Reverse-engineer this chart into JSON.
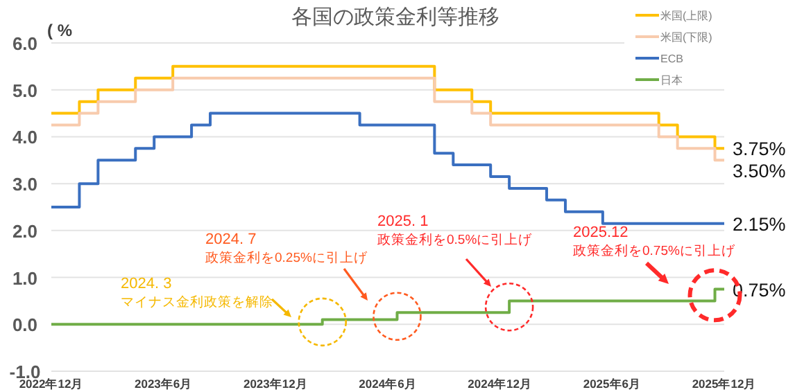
{
  "chart_data": {
    "type": "step",
    "title": "各国の政策金利等推移",
    "ylabel": "( %",
    "categories": [
      "2022年12月",
      null,
      null,
      null,
      null,
      null,
      "2023年6月",
      null,
      null,
      null,
      null,
      null,
      "2023年12月",
      null,
      null,
      null,
      null,
      null,
      "2024年6月",
      null,
      null,
      null,
      null,
      null,
      "2024年12月",
      null,
      null,
      null,
      null,
      null,
      "2025年6月",
      null,
      null,
      null,
      null,
      null,
      "2025年12月"
    ],
    "ylim": [
      -1,
      6
    ],
    "yticks": [
      {
        "value": -1,
        "label": "-1.0"
      },
      {
        "value": 0,
        "label": "0.0"
      },
      {
        "value": 1,
        "label": "1.0"
      },
      {
        "value": 2,
        "label": "2.0"
      },
      {
        "value": 3,
        "label": "3.0"
      },
      {
        "value": 4,
        "label": "4.0"
      },
      {
        "value": 5,
        "label": "5.0"
      },
      {
        "value": 6,
        "label": "6.0"
      }
    ],
    "grid": "y",
    "legend": "top right",
    "line_style": "solid",
    "marker": "none",
    "series": [
      {
        "name": "米国(上限)",
        "color": "#ffc000",
        "values": [
          4.5,
          4.5,
          4.75,
          5.0,
          5.0,
          5.25,
          5.25,
          5.5,
          5.5,
          5.5,
          5.5,
          5.5,
          5.5,
          5.5,
          5.5,
          5.5,
          5.5,
          5.5,
          5.5,
          5.5,
          5.5,
          5.0,
          5.0,
          4.75,
          4.5,
          4.5,
          4.5,
          4.5,
          4.5,
          4.5,
          4.5,
          4.5,
          4.5,
          4.25,
          4.0,
          4.0,
          3.75
        ],
        "value_labels": [
          null,
          null,
          null,
          null,
          null,
          null,
          null,
          null,
          null,
          null,
          null,
          null,
          null,
          null,
          null,
          null,
          null,
          null,
          null,
          null,
          null,
          null,
          null,
          null,
          null,
          null,
          null,
          null,
          null,
          null,
          null,
          null,
          null,
          null,
          null,
          null,
          "3.75%"
        ]
      },
      {
        "name": "米国(下限)",
        "color": "#f8cbad",
        "values": [
          4.25,
          4.25,
          4.5,
          4.75,
          4.75,
          5.0,
          5.0,
          5.25,
          5.25,
          5.25,
          5.25,
          5.25,
          5.25,
          5.25,
          5.25,
          5.25,
          5.25,
          5.25,
          5.25,
          5.25,
          5.25,
          4.75,
          4.75,
          4.5,
          4.25,
          4.25,
          4.25,
          4.25,
          4.25,
          4.25,
          4.25,
          4.25,
          4.25,
          4.0,
          3.75,
          3.75,
          3.5
        ],
        "value_labels": [
          null,
          null,
          null,
          null,
          null,
          null,
          null,
          null,
          null,
          null,
          null,
          null,
          null,
          null,
          null,
          null,
          null,
          null,
          null,
          null,
          null,
          null,
          null,
          null,
          null,
          null,
          null,
          null,
          null,
          null,
          null,
          null,
          null,
          null,
          null,
          null,
          "3.50%"
        ]
      },
      {
        "name": "ECB",
        "color": "#3a6fc0",
        "values": [
          2.5,
          2.5,
          3.0,
          3.5,
          3.5,
          3.75,
          4.0,
          4.0,
          4.25,
          4.5,
          4.5,
          4.5,
          4.5,
          4.5,
          4.5,
          4.5,
          4.5,
          4.25,
          4.25,
          4.25,
          4.25,
          3.65,
          3.4,
          3.4,
          3.15,
          2.9,
          2.9,
          2.65,
          2.4,
          2.4,
          2.15,
          2.15,
          2.15,
          2.15,
          2.15,
          2.15,
          2.15
        ],
        "value_labels": [
          null,
          null,
          null,
          null,
          null,
          null,
          null,
          null,
          null,
          null,
          null,
          null,
          null,
          null,
          null,
          null,
          null,
          null,
          null,
          null,
          null,
          null,
          null,
          null,
          null,
          null,
          null,
          null,
          null,
          null,
          null,
          null,
          null,
          null,
          null,
          null,
          "2.15%"
        ]
      },
      {
        "name": "日本",
        "color": "#70ad47",
        "values": [
          0,
          0,
          0,
          0,
          0,
          0,
          0,
          0,
          0,
          0,
          0,
          0,
          0,
          0,
          0,
          0.1,
          0.1,
          0.1,
          0.1,
          0.25,
          0.25,
          0.25,
          0.25,
          0.25,
          0.25,
          0.5,
          0.5,
          0.5,
          0.5,
          0.5,
          0.5,
          0.5,
          0.5,
          0.5,
          0.5,
          0.5,
          0.75
        ],
        "value_labels": [
          null,
          null,
          null,
          null,
          null,
          null,
          null,
          null,
          null,
          null,
          null,
          null,
          null,
          null,
          null,
          null,
          null,
          null,
          null,
          null,
          null,
          null,
          null,
          null,
          null,
          null,
          null,
          null,
          null,
          null,
          null,
          null,
          null,
          null,
          null,
          null,
          "0.75%"
        ]
      }
    ],
    "annotations": [
      "2024. 3",
      "マイナス金利政策を解除",
      "2024. 7",
      "政策金利を0.25%に引上げ",
      "2025. 1",
      "政策金利を0.5%に引上げ",
      "2025.12",
      "政策金利を0.75%に引上げ"
    ]
  }
}
